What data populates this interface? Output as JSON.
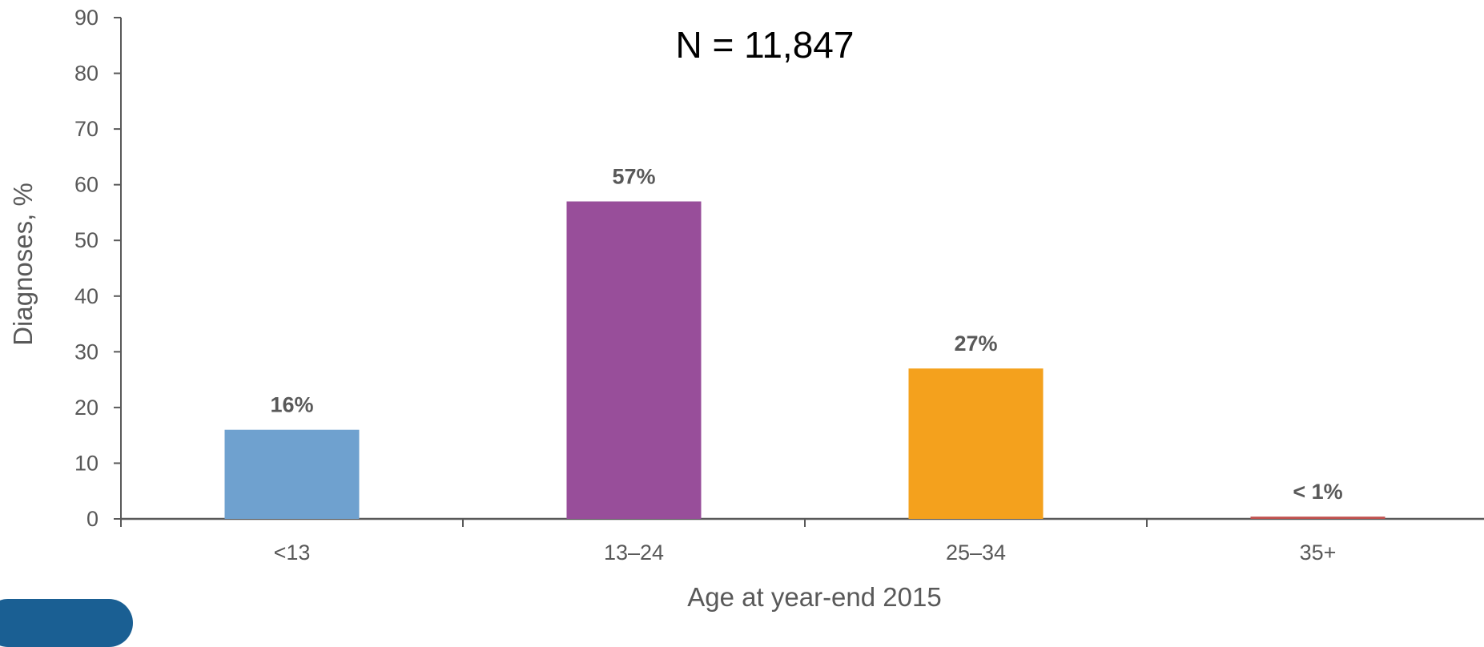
{
  "chart_data": {
    "type": "bar",
    "title": "N = 11,847",
    "xlabel": "Age at year-end 2015",
    "ylabel": "Diagnoses, %",
    "categories": [
      "<13",
      "13–24",
      "25–34",
      "35+"
    ],
    "values": [
      16,
      57,
      27,
      0.4
    ],
    "data_labels": [
      "16%",
      "57%",
      "27%",
      "< 1%"
    ],
    "colors": [
      "#6fa1cf",
      "#984e9a",
      "#f4a11d",
      "#c0504d"
    ],
    "ylim": [
      0,
      90
    ],
    "yticks": [
      0,
      10,
      20,
      30,
      40,
      50,
      60,
      70,
      80,
      90
    ],
    "grid": false,
    "legend": "none"
  }
}
